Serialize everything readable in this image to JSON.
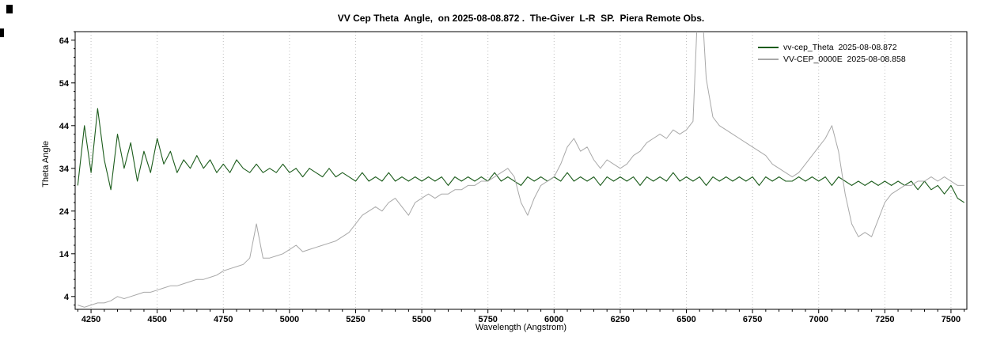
{
  "title": "VV Cep Theta  Angle,  on 2025-08-08.872 .  The-Giver  L-R  SP.  Piera Remote Obs.",
  "axes": {
    "x_label": "Wavelength (Angstrom)",
    "y_label": "Theta Angle"
  },
  "colors": {
    "background": "#ffffff",
    "frame": "#000000",
    "grid": "#bdbdbd",
    "series_green": "#1c5c1c",
    "series_gray": "#a8a8a8"
  },
  "chart_data": {
    "type": "line",
    "title": "VV Cep Theta Angle, on 2025-08-08.872 . The-Giver L-R SP. Piera Remote Obs.",
    "xlabel": "Wavelength (Angstrom)",
    "ylabel": "Theta Angle",
    "xlim": [
      4190,
      7560
    ],
    "ylim": [
      1,
      66
    ],
    "x_ticks": [
      4250,
      4500,
      4750,
      5000,
      5250,
      5500,
      5750,
      6000,
      6250,
      6500,
      6750,
      7000,
      7250,
      7500
    ],
    "y_ticks": [
      4,
      14,
      24,
      34,
      44,
      54,
      64
    ],
    "x_minor_step": 50,
    "grid": "vertical-dotted",
    "legend_position": "top-right",
    "x_start": 4200,
    "x_step": 25,
    "series": [
      {
        "name": "vv-cep_Theta  2025-08-08.872",
        "color": "#1c5c1c",
        "width": 1.1,
        "values": [
          30,
          44,
          33,
          48,
          36,
          29,
          42,
          34,
          40,
          31,
          38,
          33,
          41,
          35,
          38,
          33,
          36,
          34,
          37,
          34,
          36,
          33,
          35,
          33,
          36,
          34,
          33,
          35,
          33,
          34,
          33,
          35,
          33,
          34,
          32,
          34,
          33,
          32,
          34,
          32,
          33,
          32,
          31,
          33,
          31,
          32,
          31,
          33,
          31,
          32,
          31,
          32,
          31,
          32,
          31,
          32,
          30,
          32,
          31,
          32,
          31,
          32,
          31,
          33,
          31,
          32,
          31,
          30,
          32,
          31,
          32,
          31,
          32,
          31,
          33,
          31,
          32,
          31,
          32,
          30,
          32,
          31,
          32,
          31,
          32,
          30,
          32,
          31,
          32,
          31,
          33,
          31,
          32,
          31,
          32,
          30,
          32,
          31,
          32,
          31,
          32,
          31,
          32,
          30,
          32,
          31,
          32,
          31,
          31,
          32,
          31,
          32,
          31,
          32,
          30,
          32,
          31,
          30,
          31,
          30,
          31,
          30,
          31,
          30,
          31,
          30,
          31,
          29,
          31,
          29,
          30,
          28,
          30,
          27,
          26
        ]
      },
      {
        "name": "VV-CEP_0000E  2025-08-08.858",
        "color": "#a8a8a8",
        "width": 1,
        "values": [
          2,
          1.5,
          2,
          2.5,
          2.5,
          3,
          4,
          3.5,
          4,
          4.5,
          5,
          5,
          5.5,
          6,
          6.5,
          6.5,
          7,
          7.5,
          8,
          8,
          8.5,
          9,
          10,
          10.5,
          11,
          11.5,
          13,
          21,
          13,
          13,
          13.5,
          14,
          15,
          16,
          14.5,
          15,
          15.5,
          16,
          16.5,
          17,
          18,
          19,
          21,
          23,
          24,
          25,
          24,
          26,
          27,
          25,
          23,
          26,
          27,
          28,
          27,
          28,
          28,
          29,
          29,
          30,
          30,
          31,
          31,
          32,
          33,
          34,
          32,
          26,
          23,
          27,
          30,
          31,
          32,
          35,
          39,
          41,
          38,
          39,
          36,
          34,
          36,
          35,
          34,
          35,
          37,
          38,
          40,
          41,
          42,
          41,
          43,
          42,
          43,
          45,
          82,
          55,
          46,
          44,
          43,
          42,
          41,
          40,
          39,
          38,
          37,
          35,
          34,
          33,
          32,
          33,
          35,
          37,
          39,
          41,
          44,
          38,
          28,
          21,
          18,
          19,
          18,
          22,
          26,
          28,
          29,
          30,
          30,
          31,
          31,
          32,
          31,
          32,
          31,
          30,
          30
        ]
      }
    ]
  }
}
